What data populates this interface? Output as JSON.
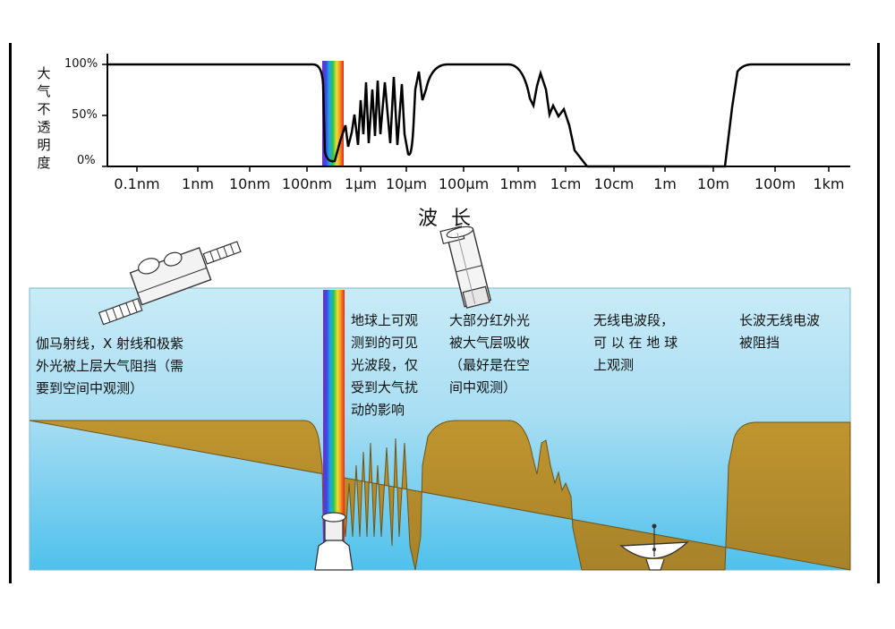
{
  "chart_data": {
    "type": "line",
    "title": "",
    "ylabel": "大气不透明度",
    "xlabel": "波 长",
    "y_ticks": [
      "100%",
      "50%",
      "0%"
    ],
    "x_ticks": [
      "0.1nm",
      "1nm",
      "10nm",
      "100nm",
      "1μm",
      "10μm",
      "100μm",
      "1mm",
      "1cm",
      "10cm",
      "1m",
      "10m",
      "100m",
      "1km"
    ],
    "ylim": [
      0,
      100
    ],
    "series": [
      {
        "values_description_only": false,
        "x": [
          "0.1nm",
          "100nm",
          "400nm",
          "1μm",
          "10μm",
          "20μm",
          "100μm",
          "1mm",
          "5mm",
          "1cm",
          "3cm",
          "10m",
          "15m",
          "1km"
        ],
        "y": [
          100,
          100,
          5,
          80,
          90,
          55,
          100,
          100,
          55,
          40,
          0,
          0,
          100,
          100
        ]
      }
    ]
  },
  "labels": {
    "ylabel_chars": [
      "大",
      "气",
      "不",
      "透",
      "明",
      "度"
    ],
    "xtitle": "波 长"
  },
  "notes": {
    "gamma": [
      "伽马射线，X 射线和极紫",
      "外光被上层大气阻挡（需",
      "要到空间中观测）"
    ],
    "visible": [
      "地球上可观",
      "测到的可见",
      "光波段，仅",
      "受到大气扰",
      "动的影响"
    ],
    "infrared": [
      "大部分红外光",
      "被大气层吸收",
      "（最好是在空",
      "间中观测）"
    ],
    "radio": [
      "无线电波段，",
      "可 以 在 地 球",
      "上观测"
    ],
    "longwave": [
      "长波无线电波",
      "被阻挡"
    ]
  },
  "colors": {
    "sky": "#b7e3f4",
    "sky_bottom": "#5cc6ec",
    "ground": "#b48c2c",
    "ground_light": "#c79a2e",
    "curve": "#000000"
  },
  "icons": [
    "satellite-icon",
    "space-telescope-icon",
    "ground-telescope-icon",
    "radio-dish-icon",
    "rainbow-spectrum-band"
  ]
}
